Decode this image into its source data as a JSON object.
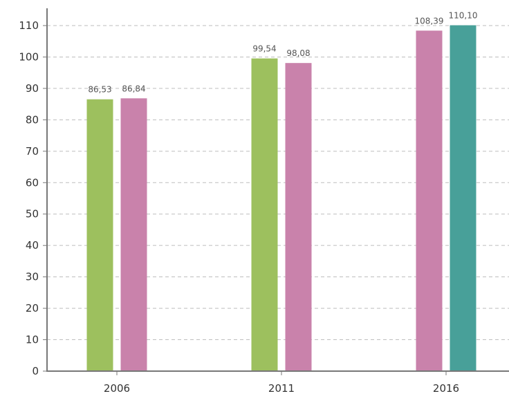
{
  "chart_data": {
    "type": "bar",
    "title": "",
    "xlabel": "",
    "ylabel": "",
    "ylim": [
      0,
      110
    ],
    "yticks": [
      0,
      10,
      20,
      30,
      40,
      50,
      60,
      70,
      80,
      90,
      100,
      110
    ],
    "grid": true,
    "categories": [
      "2006",
      "2011",
      "2016"
    ],
    "bars": [
      {
        "category": "2006",
        "value": 86.53,
        "label": "86,53",
        "color": "#9dc05e"
      },
      {
        "category": "2006",
        "value": 86.84,
        "label": "86,84",
        "color": "#c982ab"
      },
      {
        "category": "2011",
        "value": 99.54,
        "label": "99,54",
        "color": "#9dc05e"
      },
      {
        "category": "2011",
        "value": 98.08,
        "label": "98,08",
        "color": "#c982ab"
      },
      {
        "category": "2016",
        "value": 108.39,
        "label": "108,39",
        "color": "#c982ab"
      },
      {
        "category": "2016",
        "value": 110.1,
        "label": "110,10",
        "color": "#48a099"
      }
    ]
  }
}
